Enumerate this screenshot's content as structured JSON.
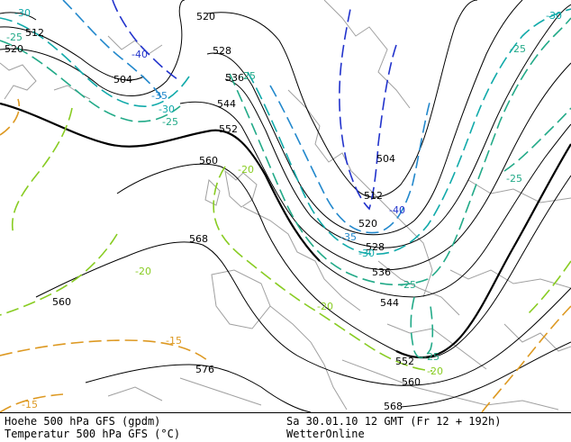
{
  "footer": {
    "left_line1": "Hoehe 500 hPa GFS (gpdm)",
    "left_line2": "Temperatur 500 hPa GFS (°C)",
    "right_line1": "Sa 30.01.10 12 GMT (Fr 12 + 192h)",
    "right_line2": "WetterOnline"
  },
  "colors": {
    "height_contour": "#000000",
    "coast_border": "#a0a0a0",
    "temp_minus40": "#2233cc",
    "temp_minus35": "#2288cc",
    "temp_minus30": "#11aaaa",
    "temp_minus25": "#22aa88",
    "temp_minus20": "#88cc22",
    "temp_minus15": "#dd9922"
  },
  "height_labels": [
    "520",
    "512",
    "520",
    "528",
    "504",
    "536",
    "544",
    "552",
    "560",
    "568",
    "504",
    "512",
    "520",
    "528",
    "536",
    "544",
    "552",
    "560",
    "568",
    "576",
    "560"
  ],
  "temp_labels": [
    "-30",
    "-25",
    "-40",
    "-35",
    "-30",
    "-25",
    "-25",
    "-20",
    "-20",
    "-40",
    "-35",
    "-30",
    "-25",
    "-20",
    "-25",
    "-20",
    "-15",
    "-30",
    "-25",
    "-25",
    "-15"
  ]
}
